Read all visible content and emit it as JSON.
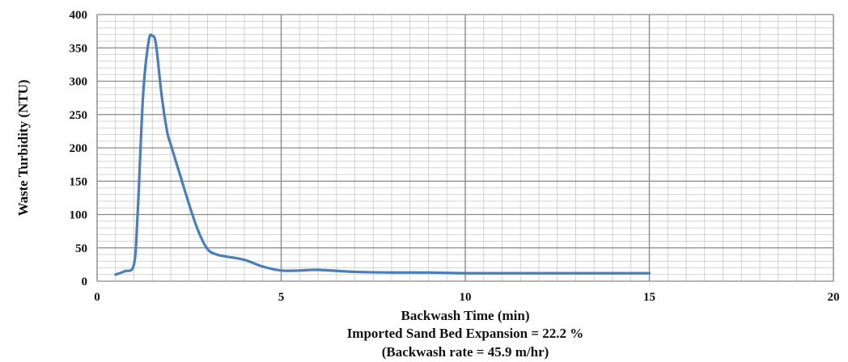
{
  "chart_data": {
    "type": "line",
    "xlabel": "Backwash Time (min)",
    "ylabel": "Waste Turbidity  (NTU)",
    "xlim": [
      0,
      20
    ],
    "ylim": [
      0,
      400
    ],
    "x_ticks": [
      0,
      5,
      10,
      15,
      20
    ],
    "y_ticks": [
      0,
      50,
      100,
      150,
      200,
      250,
      300,
      350,
      400
    ],
    "grid": true,
    "line_color": "#4a7ebb",
    "caption": [
      "Imported  Sand Bed Expansion  = 22.2 %",
      "(Backwash rate = 45.9 m/hr)"
    ],
    "series": [
      {
        "x": [
          0.5,
          0.75,
          1.0,
          1.1,
          1.25,
          1.4,
          1.5,
          1.6,
          1.75,
          1.9,
          2.0,
          2.25,
          2.5,
          2.75,
          3.0,
          3.25,
          3.5,
          4.0,
          4.5,
          5.0,
          5.5,
          6.0,
          7.0,
          8.0,
          9.0,
          10.0,
          11.0,
          12.0,
          13.0,
          14.0,
          15.0
        ],
        "y": [
          10,
          15,
          25,
          100,
          280,
          360,
          368,
          355,
          280,
          225,
          205,
          160,
          115,
          75,
          48,
          40,
          37,
          32,
          22,
          16,
          16,
          17,
          14,
          13,
          13,
          12,
          12,
          12,
          12,
          12,
          12
        ]
      }
    ]
  }
}
